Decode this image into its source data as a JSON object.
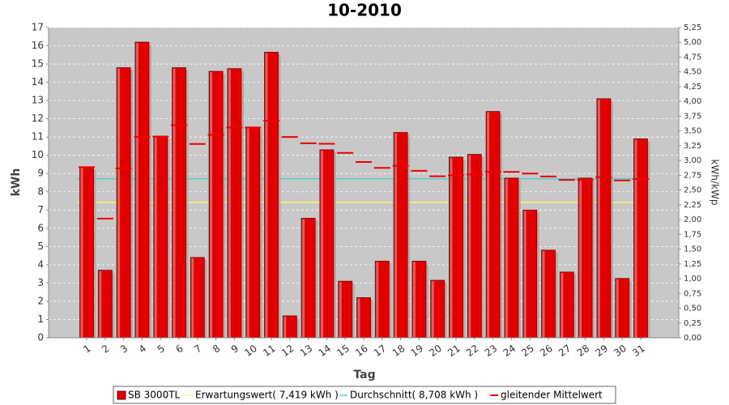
{
  "chart_data": {
    "type": "bar",
    "title": "10-2010",
    "x_label": "Tag",
    "y_label": "kWh",
    "y2_label": "kWh/kWp",
    "categories": [
      "1",
      "2",
      "3",
      "4",
      "5",
      "6",
      "7",
      "8",
      "9",
      "10",
      "11",
      "12",
      "13",
      "14",
      "15",
      "16",
      "17",
      "18",
      "19",
      "20",
      "21",
      "22",
      "23",
      "24",
      "25",
      "26",
      "27",
      "28",
      "29",
      "30",
      "31"
    ],
    "series": [
      {
        "name": "SB 3000TL",
        "color": "#e00000",
        "kind": "bar",
        "values": [
          9.35,
          3.7,
          14.8,
          16.2,
          11.05,
          14.8,
          4.4,
          14.6,
          14.75,
          11.55,
          15.65,
          1.2,
          6.55,
          10.3,
          3.1,
          2.2,
          4.2,
          11.25,
          4.2,
          3.15,
          9.9,
          10.05,
          12.4,
          8.75,
          7.0,
          4.8,
          3.6,
          8.75,
          13.1,
          3.25,
          10.9
        ]
      },
      {
        "name": "Erwartungswert( 7,419 kWh )",
        "color": "#ffff66",
        "kind": "constant",
        "value": 7.419
      },
      {
        "name": "Durchschnitt( 8,708 kWh )",
        "color": "#33cccc",
        "kind": "constant",
        "value": 8.708
      },
      {
        "name": "gleitender Mittelwert",
        "color": "#ee0000",
        "kind": "step",
        "values": [
          9.35,
          6.53,
          9.28,
          11.01,
          11.02,
          11.65,
          10.62,
          11.12,
          11.52,
          11.52,
          11.9,
          11.0,
          10.66,
          10.63,
          10.13,
          9.63,
          9.31,
          9.42,
          9.15,
          8.85,
          8.9,
          8.95,
          9.1,
          9.09,
          9.0,
          8.84,
          8.65,
          8.65,
          8.8,
          8.62,
          8.7
        ]
      }
    ],
    "ylim": [
      0,
      17
    ],
    "yticks": [
      0,
      1,
      2,
      3,
      4,
      5,
      6,
      7,
      8,
      9,
      10,
      11,
      12,
      13,
      14,
      15,
      16,
      17
    ],
    "y2lim": [
      0,
      5.25
    ],
    "y2ticks": [
      {
        "value": 0,
        "label": "0,00"
      },
      {
        "value": 0.25,
        "label": "0,25"
      },
      {
        "value": 0.5,
        "label": "0,50"
      },
      {
        "value": 0.75,
        "label": "0,75"
      },
      {
        "value": 1,
        "label": "1,00"
      },
      {
        "value": 1.25,
        "label": "1,25"
      },
      {
        "value": 1.5,
        "label": "1,50"
      },
      {
        "value": 1.75,
        "label": "1,75"
      },
      {
        "value": 2,
        "label": "2,00"
      },
      {
        "value": 2.25,
        "label": "2,25"
      },
      {
        "value": 2.5,
        "label": "2,50"
      },
      {
        "value": 2.75,
        "label": "2,75"
      },
      {
        "value": 3,
        "label": "3,00"
      },
      {
        "value": 3.25,
        "label": "3,25"
      },
      {
        "value": 3.5,
        "label": "3,50"
      },
      {
        "value": 3.75,
        "label": "3,75"
      },
      {
        "value": 4,
        "label": "4,00"
      },
      {
        "value": 4.25,
        "label": "4,25"
      },
      {
        "value": 4.5,
        "label": "4,50"
      },
      {
        "value": 4.75,
        "label": "4,75"
      },
      {
        "value": 5,
        "label": "5,00"
      },
      {
        "value": 5.25,
        "label": "5,25"
      }
    ],
    "grid": true
  }
}
